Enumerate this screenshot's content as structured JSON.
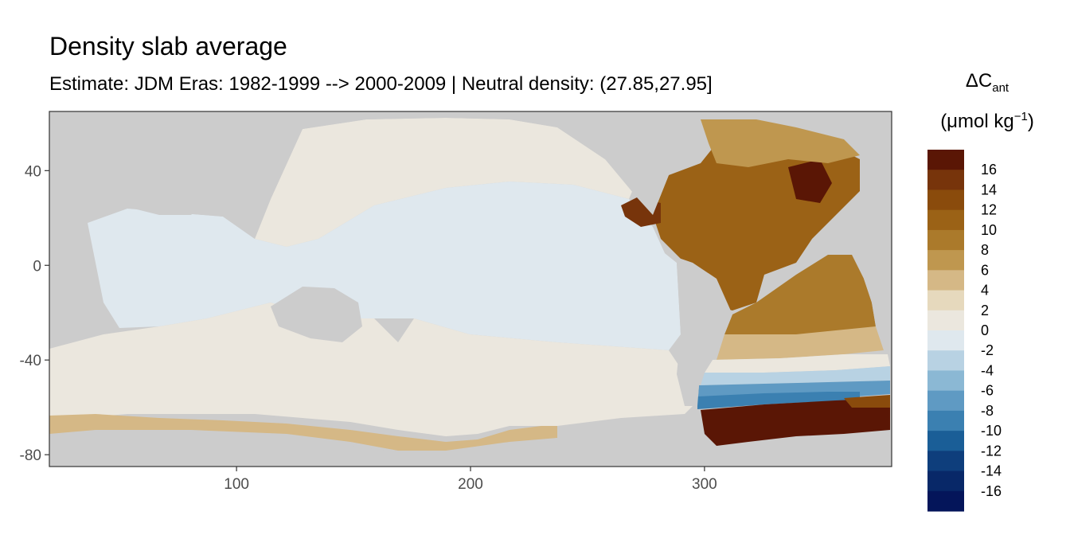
{
  "title": "Density slab average",
  "subtitle": "Estimate: JDM Eras: 1982-1999 --> 2000-2009 | Neutral density: (27.85,27.95]",
  "legend": {
    "symbol": "ΔC",
    "subscript": "ant",
    "unit_open": "(μmol kg",
    "unit_exp": "−1",
    "unit_close": ")",
    "labels": [
      "16",
      "14",
      "12",
      "10",
      "8",
      "6",
      "4",
      "2",
      "0",
      "-2",
      "-4",
      "-6",
      "-8",
      "-10",
      "-12",
      "-14",
      "-16"
    ],
    "colors": [
      "#5a1605",
      "#77340b",
      "#8a4b0c",
      "#9b6216",
      "#ab7a2b",
      "#bf974f",
      "#d5b886",
      "#e6d9bd",
      "#ebe7de",
      "#dfe8ee",
      "#b8d2e3",
      "#8bb8d4",
      "#5f9ac3",
      "#3b80b1",
      "#1a5e97",
      "#0e3e7c",
      "#082868",
      "#04155a"
    ]
  },
  "axes": {
    "x_ticks": [
      100,
      200,
      300
    ],
    "y_ticks": [
      40,
      0,
      -40,
      -80
    ]
  },
  "map_data": {
    "x_range": [
      20,
      380
    ],
    "y_range": [
      -85,
      65
    ],
    "land_color": "#cccccc",
    "regions": [
      {
        "name": "indian-pacific-north",
        "color": "#ebe7de"
      },
      {
        "name": "tropical-pacific-indian",
        "color": "#dfe8ee"
      },
      {
        "name": "southern-band",
        "color": "#ebe7de"
      },
      {
        "name": "antarctic-margin",
        "color": "#e6d9bd"
      },
      {
        "name": "north-atlantic",
        "color": "#9b6216"
      },
      {
        "name": "south-atlantic",
        "color": "#ab7a2b"
      },
      {
        "name": "weddell-sea",
        "color": "#5a1605"
      },
      {
        "name": "southern-atlantic-front",
        "color": "#5f9ac3"
      }
    ]
  }
}
